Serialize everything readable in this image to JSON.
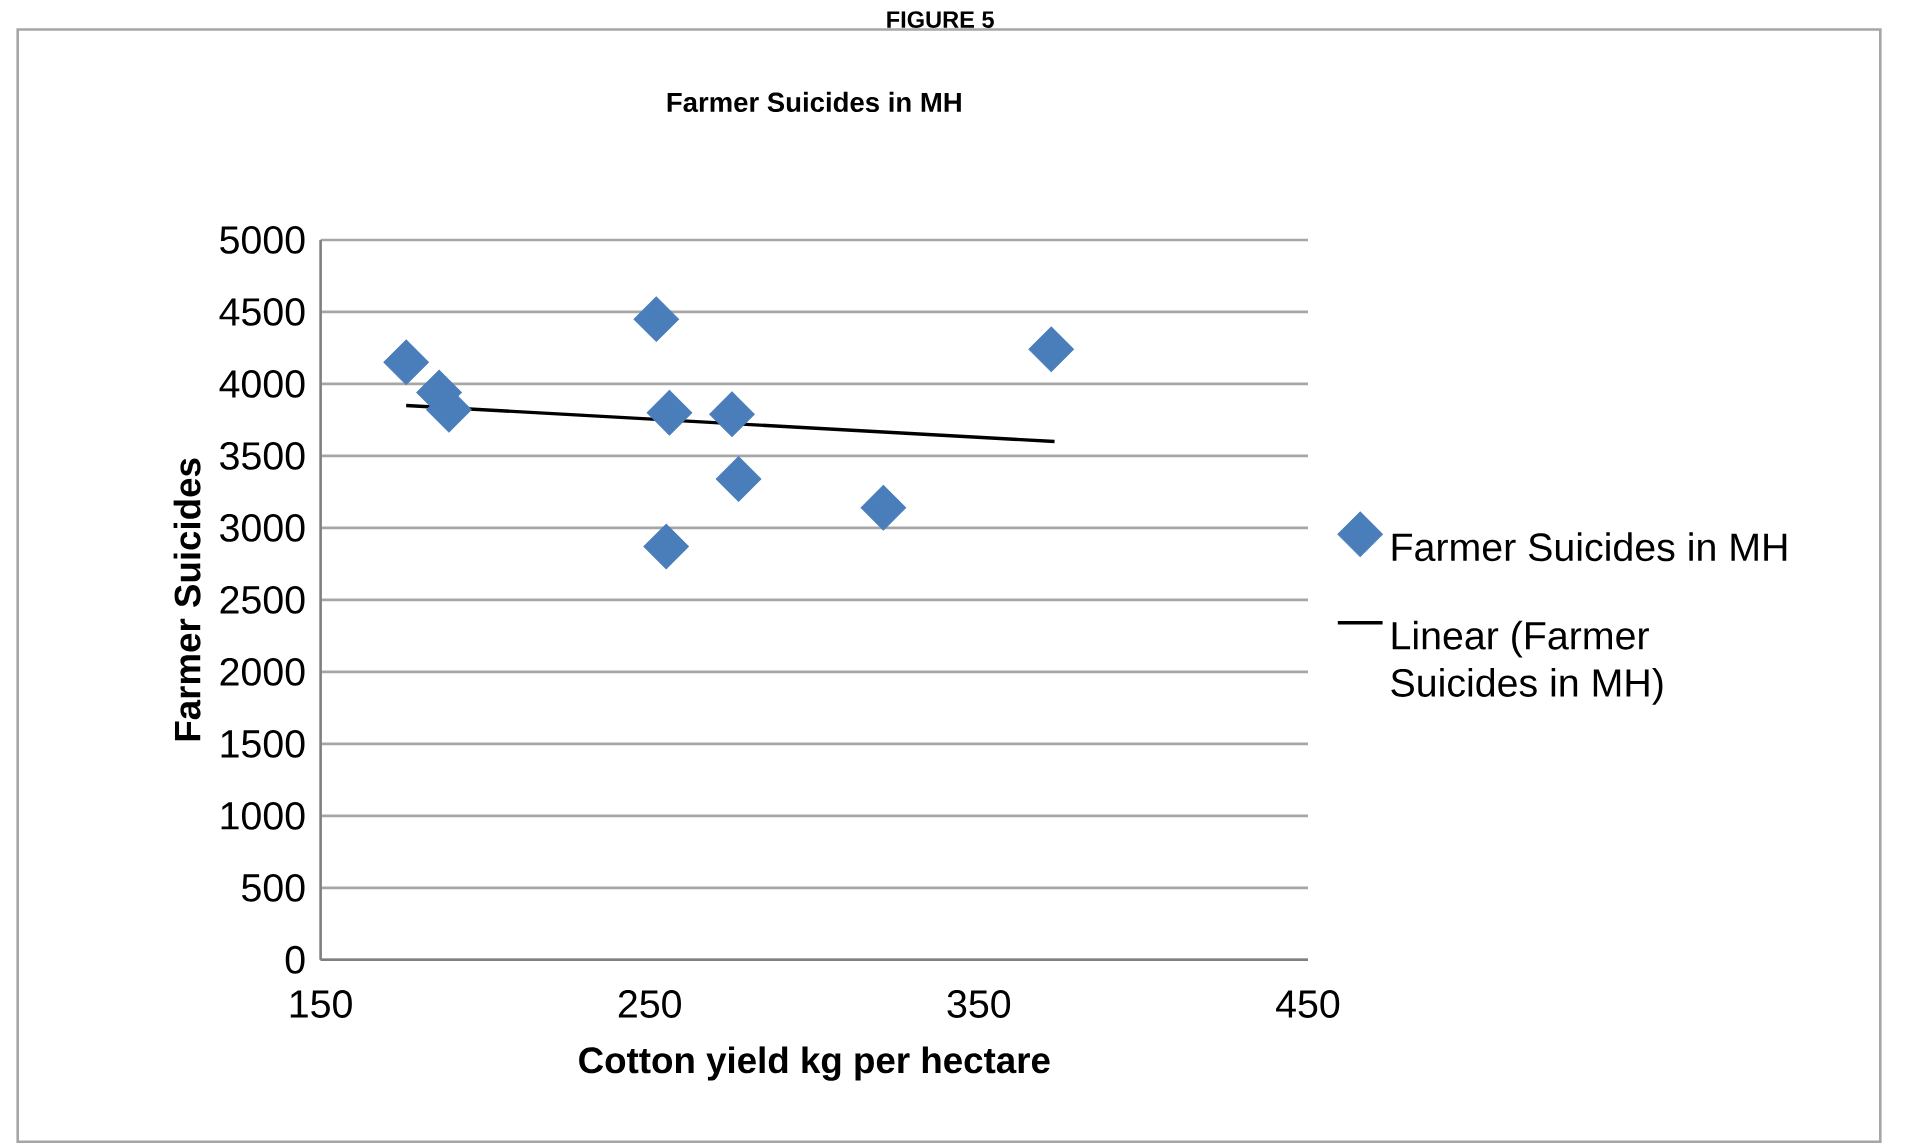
{
  "chart_data": {
    "type": "scatter",
    "title": "Farmer Suicides in MH",
    "xlabel": "Cotton yield kg per hectare",
    "ylabel": "Farmer Suicides",
    "annotations": [
      "FIGURE 5"
    ],
    "xlim": [
      150,
      450
    ],
    "xticks": [
      150,
      250,
      350,
      450
    ],
    "ylim": [
      0,
      5000
    ],
    "yticks": [
      0,
      500,
      1000,
      1500,
      2000,
      2500,
      3000,
      3500,
      4000,
      4500,
      5000
    ],
    "grid": "y",
    "legend": "right",
    "series": [
      {
        "name": "Farmer Suicides in MH",
        "color": "#4a7ebb",
        "marker": "diamond",
        "x": [
          176,
          186,
          189,
          252,
          256,
          255,
          275,
          277,
          321,
          372
        ],
        "values": [
          4150,
          3940,
          3820,
          4450,
          3800,
          2870,
          3790,
          3340,
          3140,
          4240
        ]
      },
      {
        "name": "Linear (Farmer Suicides in MH)",
        "type": "line",
        "color": "#000000",
        "marker": "none",
        "line_style": "solid",
        "x": [
          176,
          373
        ],
        "values": [
          3850,
          3600
        ]
      }
    ]
  }
}
